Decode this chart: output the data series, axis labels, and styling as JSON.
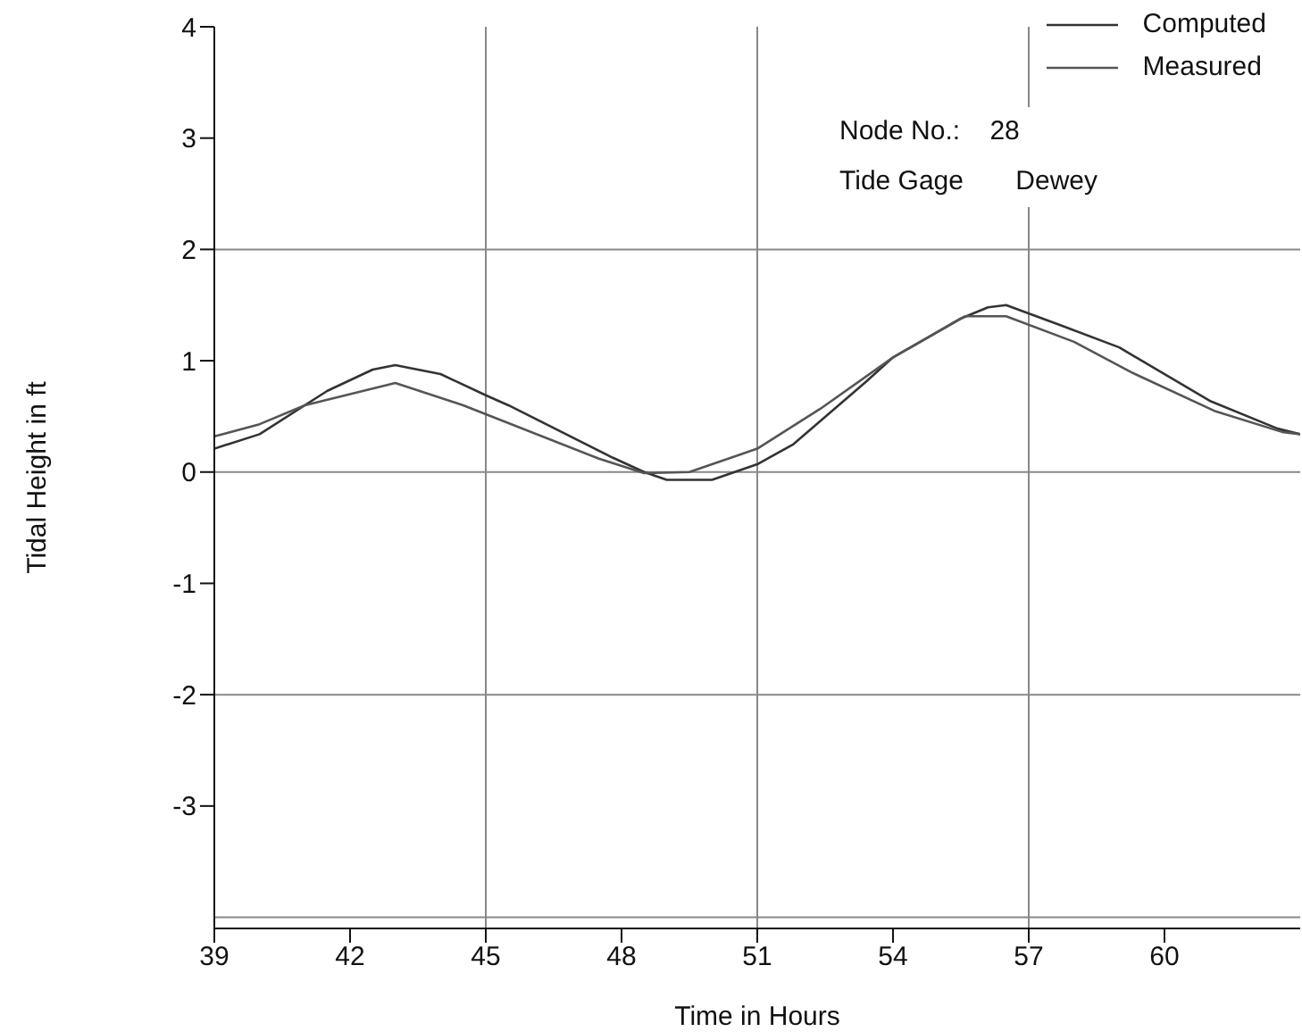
{
  "chart_data": {
    "type": "line",
    "xlabel": "Time in Hours",
    "ylabel": "Tidal Height in ft",
    "xlim": [
      39,
      63
    ],
    "xticks": [
      39,
      42,
      45,
      48,
      51,
      54,
      57,
      60
    ],
    "ylim": [
      -4.1,
      4
    ],
    "yticks": [
      -3,
      -2,
      -1,
      0,
      1,
      2,
      3,
      4
    ],
    "grid": false,
    "legend": "top right",
    "marker": "none",
    "line_style": "solid",
    "series": [
      {
        "name": "Computed",
        "color": "#333333",
        "x": [
          39,
          40,
          41.5,
          42.5,
          43,
          44,
          45,
          45.5,
          47.8,
          48.5,
          49,
          50,
          51,
          51.8,
          53.4,
          54,
          55.5,
          56.1,
          56.5,
          57.7,
          59,
          61,
          62.5,
          63
        ],
        "values": [
          0.21,
          0.34,
          0.73,
          0.92,
          0.96,
          0.88,
          0.69,
          0.6,
          0.13,
          0,
          -0.07,
          -0.07,
          0.07,
          0.25,
          0.81,
          1.03,
          1.38,
          1.48,
          1.5,
          1.32,
          1.12,
          0.64,
          0.39,
          0.34
        ]
      },
      {
        "name": "Measured",
        "color": "#555555",
        "x": [
          39,
          40,
          41,
          43,
          44.5,
          47.5,
          48.5,
          49.5,
          50,
          51,
          52.4,
          54,
          55.6,
          56.5,
          58,
          59.3,
          61.1,
          62.6,
          63
        ],
        "values": [
          0.32,
          0.43,
          0.6,
          0.8,
          0.6,
          0.12,
          -0.01,
          0,
          0.07,
          0.21,
          0.57,
          1.03,
          1.4,
          1.4,
          1.17,
          0.89,
          0.55,
          0.36,
          0.34
        ]
      }
    ],
    "ref_lines": [
      {
        "axis": "x",
        "value": 45
      },
      {
        "axis": "x",
        "value": 51
      },
      {
        "axis": "x",
        "value": 57
      },
      {
        "axis": "y",
        "value": 2
      },
      {
        "axis": "y",
        "value": 0
      },
      {
        "axis": "y",
        "value": -2
      },
      {
        "axis": "y",
        "value": -4
      }
    ],
    "annotations": [
      "Node No.:    28",
      "Tide Gage       Dewey"
    ]
  }
}
